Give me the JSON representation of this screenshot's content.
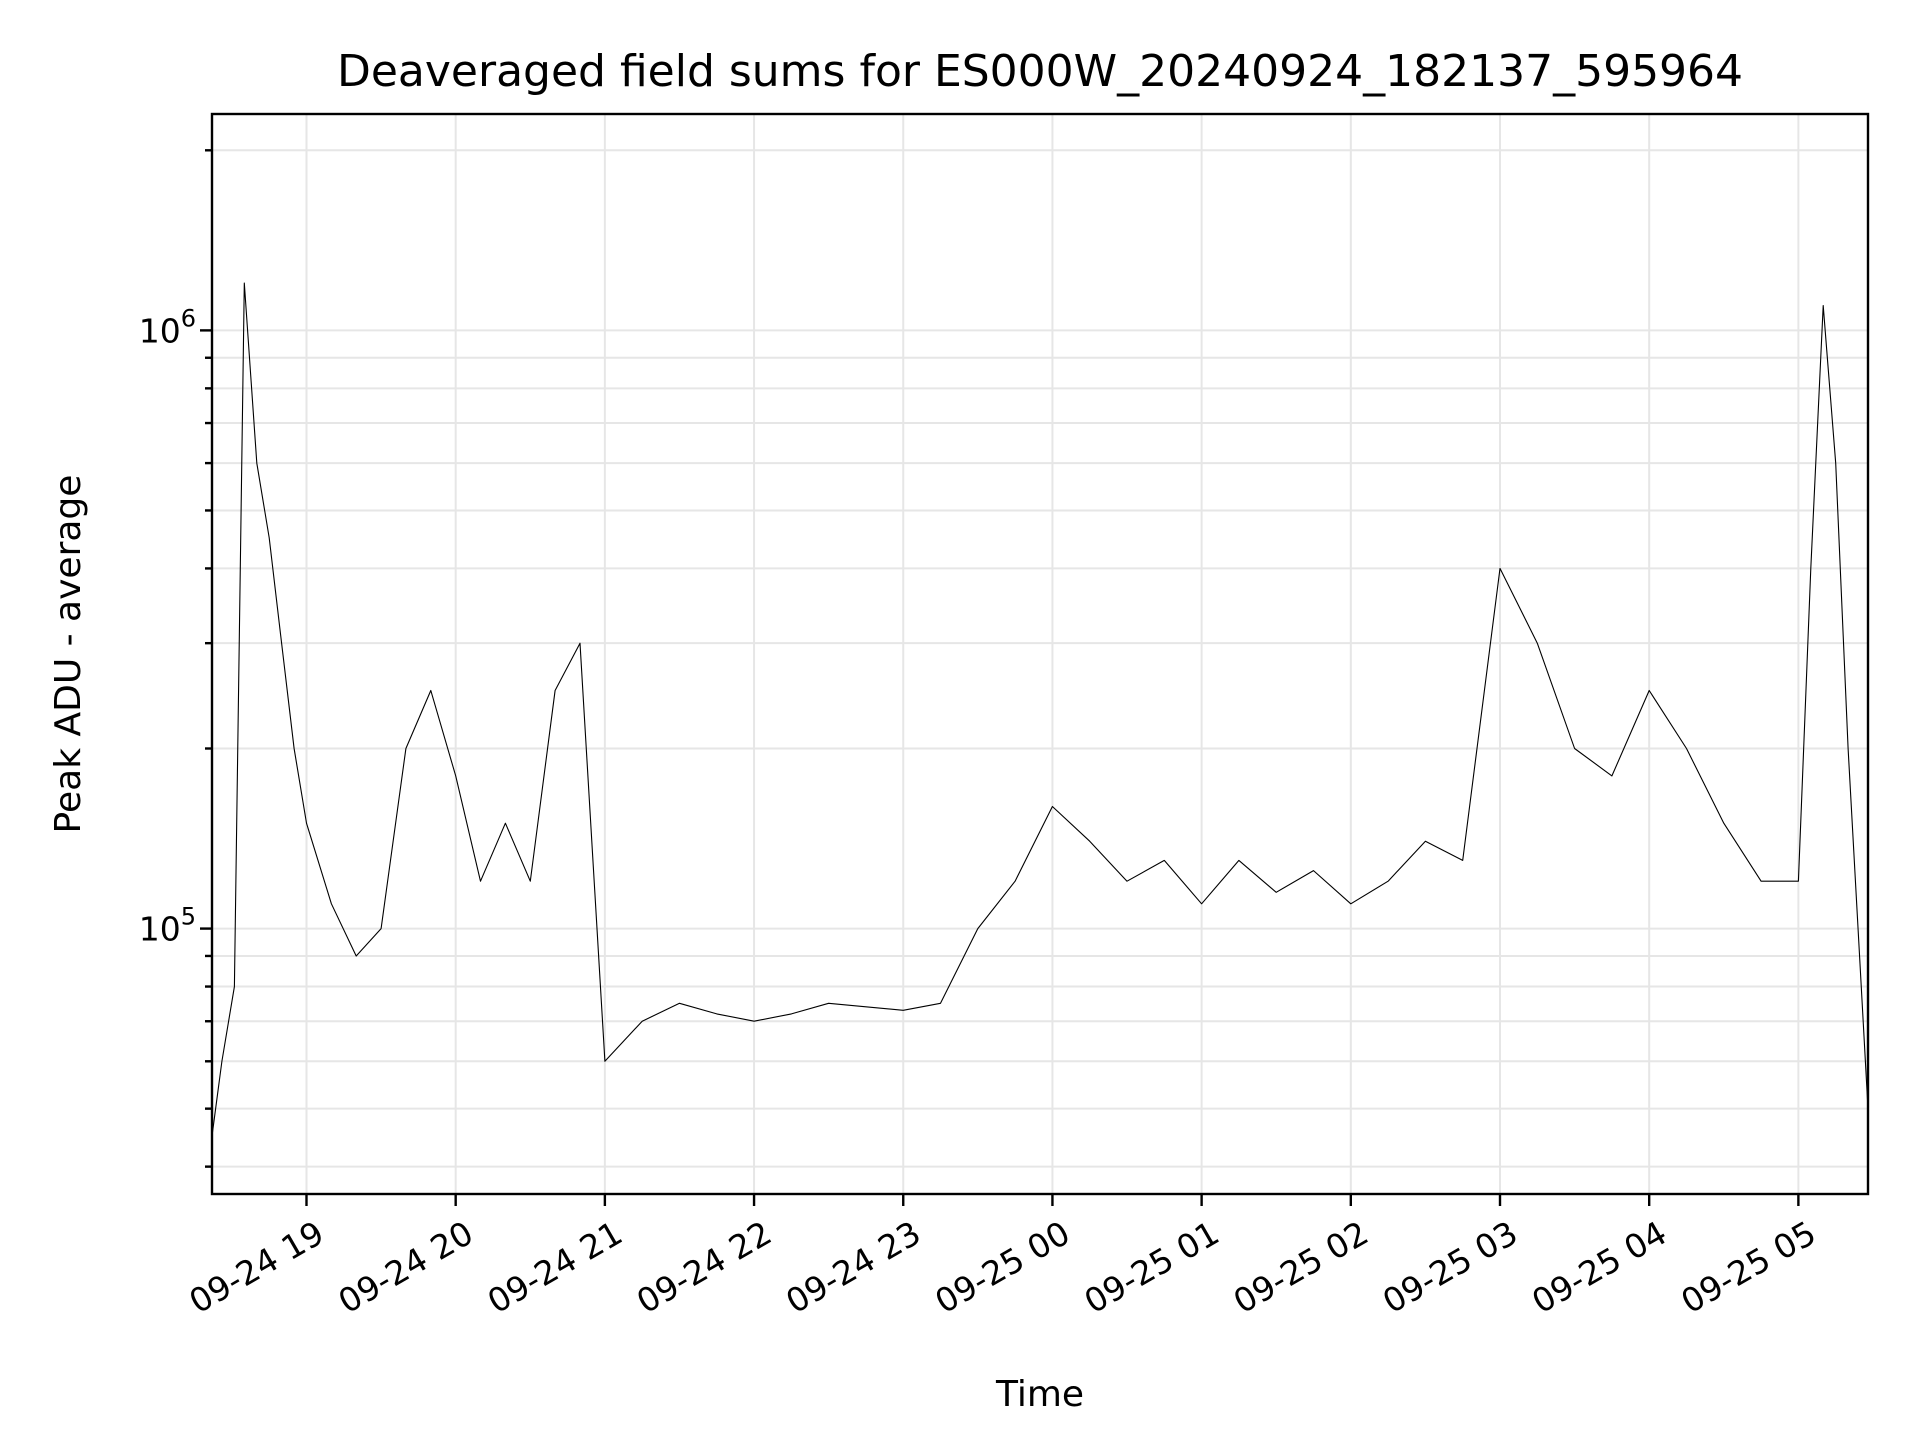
{
  "chart_data": {
    "type": "line",
    "title": "Deaveraged field sums for ES000W_20240924_182137_595964",
    "xlabel": "Time",
    "ylabel": "Peak ADU - average",
    "yscale": "log",
    "ylim": [
      36000,
      2300000
    ],
    "xlim": [
      "2024-09-24 18:22",
      "2024-09-25 05:28"
    ],
    "grid": "both-major-minor",
    "x_ticks": [
      {
        "value": "2024-09-24 19:00",
        "label": "09-24 19"
      },
      {
        "value": "2024-09-24 20:00",
        "label": "09-24 20"
      },
      {
        "value": "2024-09-24 21:00",
        "label": "09-24 21"
      },
      {
        "value": "2024-09-24 22:00",
        "label": "09-24 22"
      },
      {
        "value": "2024-09-24 23:00",
        "label": "09-24 23"
      },
      {
        "value": "2024-09-25 00:00",
        "label": "09-25 00"
      },
      {
        "value": "2024-09-25 01:00",
        "label": "09-25 01"
      },
      {
        "value": "2024-09-25 02:00",
        "label": "09-25 02"
      },
      {
        "value": "2024-09-25 03:00",
        "label": "09-25 03"
      },
      {
        "value": "2024-09-25 04:00",
        "label": "09-25 04"
      },
      {
        "value": "2024-09-25 05:00",
        "label": "09-25 05"
      }
    ],
    "y_ticks": [
      {
        "value": 100000,
        "base": "10",
        "exp": "5"
      },
      {
        "value": 1000000,
        "base": "10",
        "exp": "6"
      }
    ],
    "series": [
      {
        "color": "#000000",
        "x": [
          "2024-09-24 18:22",
          "2024-09-24 18:26",
          "2024-09-24 18:31",
          "2024-09-24 18:35",
          "2024-09-24 18:40",
          "2024-09-24 18:45",
          "2024-09-24 18:50",
          "2024-09-24 18:55",
          "2024-09-24 19:00",
          "2024-09-24 19:10",
          "2024-09-24 19:20",
          "2024-09-24 19:30",
          "2024-09-24 19:40",
          "2024-09-24 19:50",
          "2024-09-24 20:00",
          "2024-09-24 20:10",
          "2024-09-24 20:20",
          "2024-09-24 20:30",
          "2024-09-24 20:40",
          "2024-09-24 20:50",
          "2024-09-24 21:00",
          "2024-09-24 21:15",
          "2024-09-24 21:30",
          "2024-09-24 21:45",
          "2024-09-24 22:00",
          "2024-09-24 22:15",
          "2024-09-24 22:30",
          "2024-09-24 22:45",
          "2024-09-24 23:00",
          "2024-09-24 23:15",
          "2024-09-24 23:30",
          "2024-09-24 23:45",
          "2024-09-25 00:00",
          "2024-09-25 00:15",
          "2024-09-25 00:30",
          "2024-09-25 00:45",
          "2024-09-25 01:00",
          "2024-09-25 01:15",
          "2024-09-25 01:30",
          "2024-09-25 01:45",
          "2024-09-25 02:00",
          "2024-09-25 02:15",
          "2024-09-25 02:30",
          "2024-09-25 02:45",
          "2024-09-25 03:00",
          "2024-09-25 03:15",
          "2024-09-25 03:30",
          "2024-09-25 03:45",
          "2024-09-25 04:00",
          "2024-09-25 04:15",
          "2024-09-25 04:30",
          "2024-09-25 04:45",
          "2024-09-25 05:00",
          "2024-09-25 05:05",
          "2024-09-25 05:10",
          "2024-09-25 05:15",
          "2024-09-25 05:20",
          "2024-09-25 05:28"
        ],
        "y": [
          45000,
          60000,
          80000,
          1200000,
          600000,
          450000,
          300000,
          200000,
          150000,
          110000,
          90000,
          100000,
          200000,
          250000,
          180000,
          120000,
          150000,
          120000,
          250000,
          300000,
          60000,
          70000,
          75000,
          72000,
          70000,
          72000,
          75000,
          74000,
          73000,
          75000,
          100000,
          120000,
          160000,
          140000,
          120000,
          130000,
          110000,
          130000,
          115000,
          125000,
          110000,
          120000,
          140000,
          130000,
          400000,
          300000,
          200000,
          180000,
          250000,
          200000,
          150000,
          120000,
          120000,
          400000,
          1100000,
          600000,
          200000,
          50000
        ]
      }
    ]
  }
}
